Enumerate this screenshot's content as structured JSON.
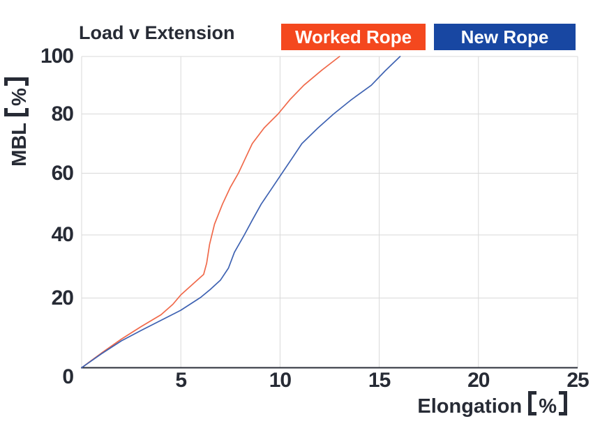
{
  "header": {
    "title": "Load v Extension",
    "legend": [
      {
        "label": "Worked Rope",
        "bg_color": "#f4481e",
        "text_color": "#ffffff"
      },
      {
        "label": "New Rope",
        "bg_color": "#1847a2",
        "text_color": "#ffffff"
      }
    ]
  },
  "axis_titles": {
    "x_text": "Elongation",
    "x_unit": "%",
    "y_text": "MBL",
    "y_unit": "%"
  },
  "colors": {
    "text": "#272b35",
    "gridline": "#d9d9d9",
    "axis_line": "#2a2e38",
    "worked_rope_line": "#f0694a",
    "new_rope_line": "#3e62b2",
    "worked_rope_accent": "#f4481e",
    "new_rope_accent": "#1847a2"
  },
  "chart_data": {
    "type": "line",
    "title": "Load v Extension",
    "xlabel": "Elongation 【%】",
    "ylabel": "MBL 【%】",
    "xlim": [
      0,
      25
    ],
    "ylim": [
      0,
      100
    ],
    "xticks": [
      0,
      5,
      10,
      15,
      20,
      25
    ],
    "yticks": [
      0,
      20,
      40,
      60,
      80,
      100
    ],
    "grid": true,
    "legend_position": "top-right",
    "series": [
      {
        "name": "Worked Rope",
        "color": "#f0694a",
        "points": [
          [
            0,
            0
          ],
          [
            1,
            4.2
          ],
          [
            2,
            8.2
          ],
          [
            3,
            11.8
          ],
          [
            4,
            15.2
          ],
          [
            4.6,
            18.2
          ],
          [
            5,
            21
          ],
          [
            5.6,
            24.4
          ],
          [
            6.15,
            27.5
          ],
          [
            6.3,
            31
          ],
          [
            6.45,
            37
          ],
          [
            6.7,
            43.5
          ],
          [
            7.1,
            50
          ],
          [
            7.5,
            55.5
          ],
          [
            7.9,
            60
          ],
          [
            8.25,
            65
          ],
          [
            8.6,
            70
          ],
          [
            9.2,
            75.3
          ],
          [
            9.9,
            80
          ],
          [
            10.5,
            85
          ],
          [
            11.2,
            90
          ],
          [
            12.1,
            95.2
          ],
          [
            13,
            100
          ]
        ]
      },
      {
        "name": "New Rope",
        "color": "#3e62b2",
        "points": [
          [
            0,
            0
          ],
          [
            1,
            4
          ],
          [
            2,
            7.7
          ],
          [
            3,
            10.7
          ],
          [
            4,
            13.6
          ],
          [
            5,
            16.5
          ],
          [
            6,
            20.2
          ],
          [
            6.5,
            22.8
          ],
          [
            7,
            25.7
          ],
          [
            7.4,
            29.5
          ],
          [
            7.7,
            34.5
          ],
          [
            8.2,
            40
          ],
          [
            8.6,
            44.8
          ],
          [
            9.05,
            50
          ],
          [
            9.6,
            55.2
          ],
          [
            10.1,
            60
          ],
          [
            10.6,
            65
          ],
          [
            11.1,
            70
          ],
          [
            11.9,
            75.2
          ],
          [
            12.7,
            80
          ],
          [
            13.6,
            85
          ],
          [
            14.6,
            90
          ],
          [
            15.3,
            95
          ],
          [
            16.05,
            100
          ]
        ]
      }
    ]
  }
}
